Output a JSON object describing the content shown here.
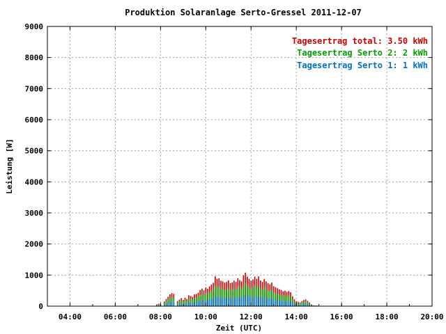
{
  "chart_data": {
    "type": "bar",
    "title": "Produktion Solaranlage Serto-Gressel 2011-12-07",
    "xlabel": "Zeit (UTC)",
    "ylabel": "Leistung [W]",
    "ylim": [
      0,
      9000
    ],
    "xlim": [
      "03:00",
      "20:00"
    ],
    "y_ticks": [
      0,
      1000,
      2000,
      3000,
      4000,
      5000,
      6000,
      7000,
      8000,
      9000
    ],
    "y_tick_labels": [
      "0",
      "1000",
      "2000",
      "3000",
      "4000",
      "5000",
      "6000",
      "7000",
      "8000",
      "9000"
    ],
    "x_ticks": [
      "04:00",
      "06:00",
      "08:00",
      "10:00",
      "12:00",
      "14:00",
      "16:00",
      "18:00",
      "20:00"
    ],
    "grid": true,
    "legend_position": "top-right",
    "legend": [
      {
        "label": "Tagesertrag total:",
        "value": "3.50 kWh",
        "color": "#cc0000"
      },
      {
        "label": "Tagesertrag Serto 2:",
        "value": "2 kWh",
        "color": "#00a000"
      },
      {
        "label": "Tagesertrag Serto 1:",
        "value": "1 kWh",
        "color": "#0070cc"
      }
    ],
    "colors": {
      "total": "#cc0000",
      "serto2": "#00a000",
      "serto1": "#0070cc"
    },
    "x": [
      "07:50",
      "07:55",
      "08:00",
      "08:10",
      "08:15",
      "08:20",
      "08:25",
      "08:30",
      "08:35",
      "08:45",
      "08:50",
      "08:55",
      "09:00",
      "09:05",
      "09:10",
      "09:15",
      "09:20",
      "09:25",
      "09:30",
      "09:35",
      "09:40",
      "09:45",
      "09:50",
      "09:55",
      "10:00",
      "10:05",
      "10:10",
      "10:15",
      "10:20",
      "10:25",
      "10:30",
      "10:35",
      "10:40",
      "10:45",
      "10:50",
      "10:55",
      "11:00",
      "11:05",
      "11:10",
      "11:15",
      "11:20",
      "11:25",
      "11:30",
      "11:35",
      "11:40",
      "11:45",
      "11:50",
      "11:55",
      "12:00",
      "12:05",
      "12:10",
      "12:15",
      "12:20",
      "12:25",
      "12:30",
      "12:35",
      "12:40",
      "12:45",
      "12:50",
      "12:55",
      "13:00",
      "13:05",
      "13:10",
      "13:15",
      "13:20",
      "13:25",
      "13:30",
      "13:35",
      "13:40",
      "13:45",
      "13:50",
      "13:55",
      "14:00",
      "14:05",
      "14:10",
      "14:15",
      "14:20",
      "14:25",
      "14:30",
      "14:35",
      "14:40",
      "14:45",
      "14:50",
      "14:55",
      "15:00"
    ],
    "series": [
      {
        "name": "Tagesertrag total",
        "values": [
          60,
          80,
          60,
          150,
          230,
          300,
          380,
          420,
          390,
          160,
          210,
          260,
          200,
          270,
          230,
          350,
          330,
          300,
          380,
          390,
          430,
          520,
          560,
          510,
          600,
          560,
          640,
          700,
          750,
          960,
          880,
          900,
          820,
          800,
          760,
          780,
          830,
          740,
          760,
          820,
          780,
          900,
          840,
          800,
          990,
          1080,
          950,
          880,
          820,
          860,
          950,
          880,
          960,
          830,
          780,
          870,
          800,
          740,
          700,
          760,
          640,
          610,
          580,
          540,
          520,
          480,
          500,
          460,
          490,
          450,
          320,
          220,
          160,
          140,
          120,
          160,
          200,
          220,
          170,
          120,
          60,
          30,
          20,
          20,
          10
        ]
      },
      {
        "name": "Tagesertrag Serto 2",
        "values": [
          40,
          55,
          40,
          100,
          160,
          210,
          260,
          290,
          270,
          110,
          150,
          180,
          140,
          190,
          160,
          240,
          230,
          210,
          260,
          270,
          300,
          360,
          390,
          350,
          410,
          390,
          440,
          480,
          520,
          660,
          600,
          620,
          560,
          550,
          520,
          540,
          570,
          510,
          520,
          560,
          540,
          620,
          580,
          550,
          680,
          740,
          650,
          600,
          560,
          590,
          650,
          600,
          660,
          570,
          540,
          600,
          550,
          510,
          480,
          520,
          440,
          420,
          400,
          370,
          360,
          330,
          340,
          320,
          340,
          310,
          220,
          150,
          110,
          95,
          85,
          110,
          140,
          150,
          120,
          80,
          40,
          20,
          14,
          14,
          7
        ]
      },
      {
        "name": "Tagesertrag Serto 1",
        "values": [
          20,
          27,
          20,
          50,
          75,
          100,
          125,
          140,
          130,
          55,
          70,
          85,
          65,
          90,
          75,
          115,
          110,
          100,
          125,
          130,
          145,
          175,
          190,
          170,
          200,
          185,
          215,
          235,
          250,
          320,
          295,
          300,
          275,
          265,
          255,
          260,
          280,
          250,
          255,
          275,
          260,
          300,
          280,
          270,
          330,
          360,
          320,
          295,
          275,
          290,
          320,
          295,
          320,
          280,
          260,
          290,
          270,
          250,
          235,
          255,
          215,
          205,
          195,
          180,
          175,
          160,
          165,
          155,
          165,
          150,
          105,
          75,
          55,
          47,
          40,
          55,
          65,
          75,
          57,
          40,
          20,
          10,
          7,
          7,
          3
        ]
      }
    ]
  }
}
